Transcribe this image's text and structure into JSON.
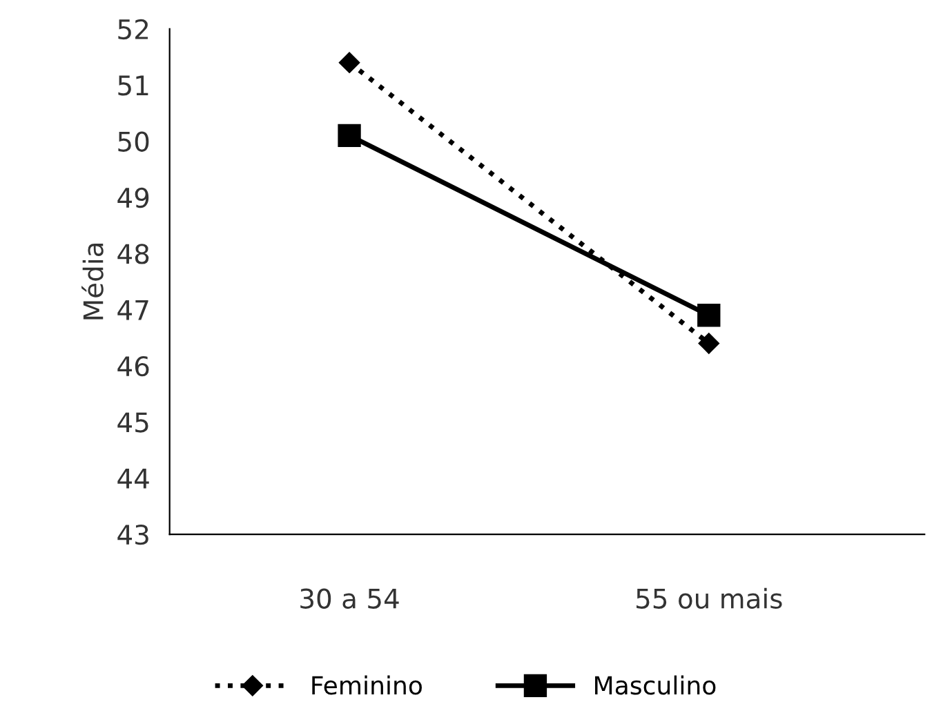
{
  "chart_data": {
    "type": "line",
    "ylabel": "Média",
    "categories": [
      "30 a 54",
      "55 ou mais"
    ],
    "series": [
      {
        "name": "Feminino",
        "color": "#000000",
        "values": [
          51.4,
          46.4
        ],
        "marker": "diamond",
        "line_style": "dotted"
      },
      {
        "name": "Masculino",
        "color": "#000000",
        "values": [
          50.1,
          46.9
        ],
        "marker": "square",
        "line_style": "solid"
      }
    ],
    "ylim": [
      43,
      52
    ],
    "yticks": [
      43,
      44,
      45,
      46,
      47,
      48,
      49,
      50,
      51,
      52
    ],
    "grid": false,
    "legend": "bottom"
  }
}
